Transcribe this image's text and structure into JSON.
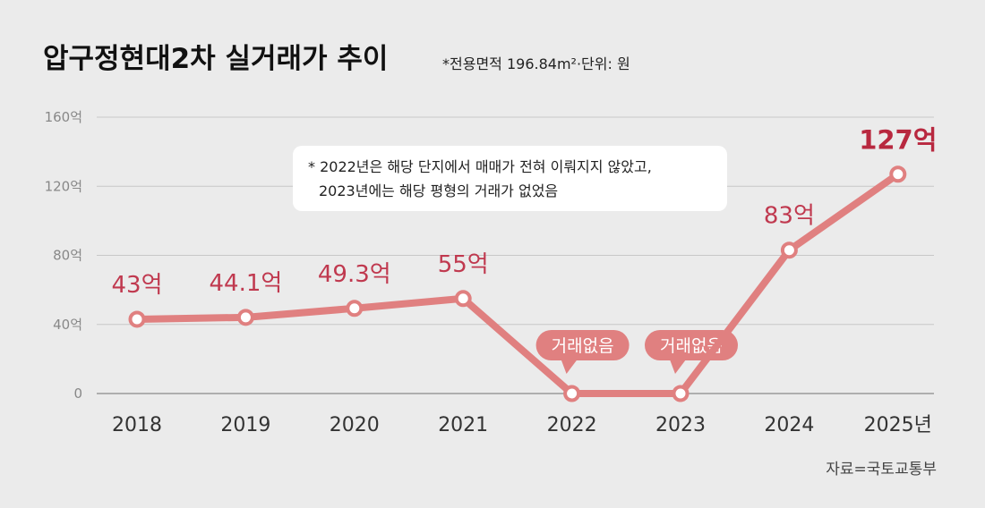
{
  "chart_data": {
    "type": "line",
    "title": "압구정현대2차 실거래가 추이",
    "subtitle": "*전용면적 196.84m²·단위: 원",
    "x": [
      "2018",
      "2019",
      "2020",
      "2021",
      "2022",
      "2023",
      "2024",
      "2025년"
    ],
    "series": [
      {
        "values": [
          43,
          44.1,
          49.3,
          55,
          0,
          0,
          83,
          127
        ]
      }
    ],
    "data_labels": [
      "43억",
      "44.1억",
      "49.3억",
      "55억",
      "",
      "",
      "83억",
      "127억"
    ],
    "no_trade_label": "거래없음",
    "no_trade_years": [
      "2022",
      "2023"
    ],
    "yticks": [
      0,
      40,
      80,
      120,
      160
    ],
    "ytick_labels": [
      "0",
      "40억",
      "80억",
      "120억",
      "160억"
    ],
    "ylim": [
      0,
      160
    ],
    "grid": true,
    "annotation": {
      "line1": "* 2022년은 해당 단지에서 매매가 전혀 이뤄지지 않았고,",
      "line2": "2023년에는 해당 평형의 거래가 없었음"
    },
    "source": "자료=국토교통부",
    "colors": {
      "line": "#e08080",
      "label": "#c0394f",
      "highlight": "#b8283f",
      "background": "#ebebeb"
    }
  }
}
